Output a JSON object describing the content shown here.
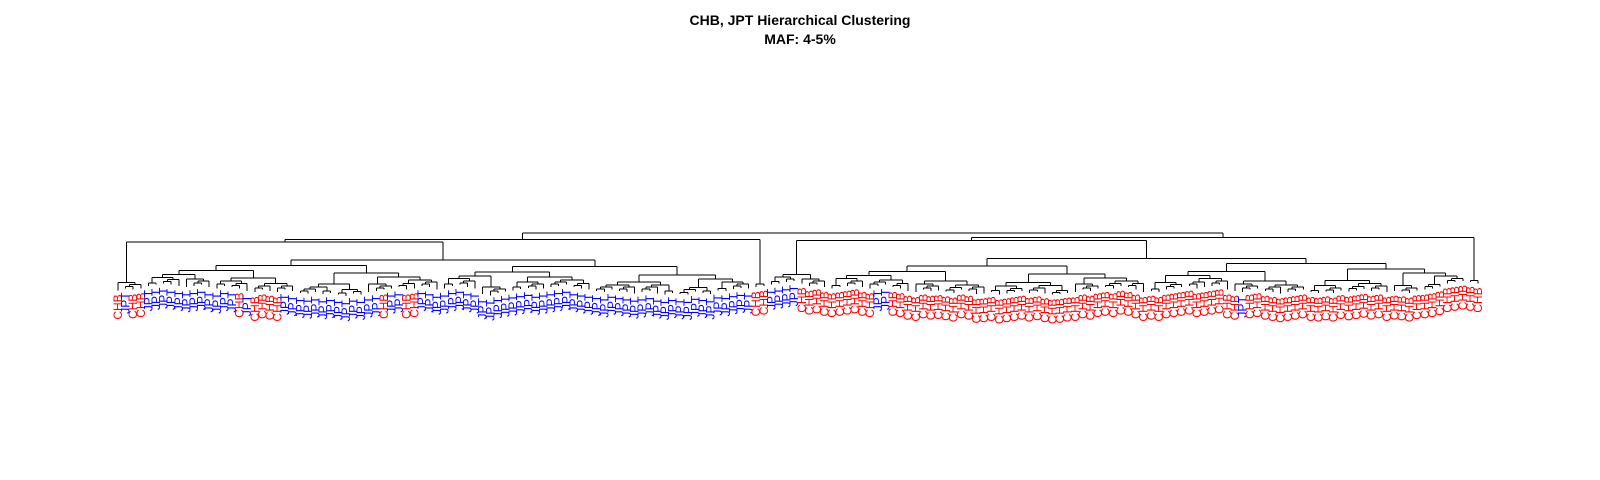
{
  "title": "CHB, JPT Hierarchical Clustering",
  "subtitle": "MAF: 4-5%",
  "colors": {
    "CHB": "#ff0000",
    "JPT": "#0000ff",
    "branch": "#000000"
  },
  "chart_data": {
    "type": "dendrogram",
    "title": "CHB, JPT Hierarchical Clustering",
    "subtitle": "MAF: 4-5%",
    "groups": [
      "CHB",
      "JPT"
    ],
    "leaf_count": 180,
    "leaf_labels": [
      "CHB",
      "JPT",
      "CHB",
      "CHB",
      "JPT",
      "JPT",
      "JPT",
      "JPT",
      "JPT",
      "JPT",
      "JPT",
      "JPT",
      "JPT",
      "JPT",
      "JPT",
      "JPT",
      "CHB",
      "JPT",
      "CHB",
      "CHB",
      "CHB",
      "CHB",
      "JPT",
      "JPT",
      "JPT",
      "JPT",
      "JPT",
      "JPT",
      "JPT",
      "JPT",
      "JPT",
      "JPT",
      "JPT",
      "JPT",
      "JPT",
      "CHB",
      "JPT",
      "JPT",
      "CHB",
      "CHB",
      "JPT",
      "JPT",
      "JPT",
      "JPT",
      "JPT",
      "JPT",
      "JPT",
      "JPT",
      "JPT",
      "JPT",
      "JPT",
      "JPT",
      "JPT",
      "JPT",
      "JPT",
      "JPT",
      "JPT",
      "JPT",
      "JPT",
      "JPT",
      "JPT",
      "JPT",
      "JPT",
      "JPT",
      "JPT",
      "JPT",
      "JPT",
      "JPT",
      "JPT",
      "JPT",
      "JPT",
      "JPT",
      "JPT",
      "JPT",
      "JPT",
      "JPT",
      "JPT",
      "JPT",
      "JPT",
      "JPT",
      "JPT",
      "JPT",
      "JPT",
      "JPT",
      "CHB",
      "CHB",
      "JPT",
      "JPT",
      "JPT",
      "JPT",
      "CHB",
      "CHB",
      "CHB",
      "CHB",
      "CHB",
      "CHB",
      "CHB",
      "CHB",
      "CHB",
      "CHB",
      "JPT",
      "JPT",
      "CHB",
      "CHB",
      "CHB",
      "CHB",
      "CHB",
      "CHB",
      "CHB",
      "CHB",
      "CHB",
      "CHB",
      "CHB",
      "CHB",
      "CHB",
      "CHB",
      "CHB",
      "CHB",
      "CHB",
      "CHB",
      "CHB",
      "CHB",
      "CHB",
      "CHB",
      "CHB",
      "CHB",
      "CHB",
      "CHB",
      "CHB",
      "CHB",
      "CHB",
      "CHB",
      "CHB",
      "CHB",
      "CHB",
      "CHB",
      "CHB",
      "CHB",
      "CHB",
      "CHB",
      "CHB",
      "CHB",
      "CHB",
      "CHB",
      "CHB",
      "CHB",
      "CHB",
      "CHB",
      "JPT",
      "CHB",
      "CHB",
      "CHB",
      "CHB",
      "CHB",
      "CHB",
      "CHB",
      "CHB",
      "CHB",
      "CHB",
      "CHB",
      "CHB",
      "CHB",
      "CHB",
      "CHB",
      "CHB",
      "CHB",
      "CHB",
      "CHB",
      "CHB",
      "CHB",
      "CHB",
      "CHB",
      "CHB",
      "CHB",
      "CHB",
      "CHB",
      "CHB",
      "CHB",
      "CHB",
      "CHB"
    ],
    "leaf_heights": [
      0.09,
      0.12,
      0.1,
      0.12,
      0.16,
      0.18,
      0.2,
      0.18,
      0.16,
      0.14,
      0.16,
      0.18,
      0.14,
      0.12,
      0.16,
      0.14,
      0.12,
      0.08,
      0.06,
      0.1,
      0.08,
      0.06,
      0.1,
      0.08,
      0.05,
      0.04,
      0.06,
      0.03,
      0.05,
      0.02,
      0.0,
      0.04,
      0.02,
      0.06,
      0.08,
      0.1,
      0.12,
      0.14,
      0.1,
      0.12,
      0.16,
      0.14,
      0.1,
      0.12,
      0.16,
      0.18,
      0.14,
      0.12,
      0.03,
      0.01,
      0.05,
      0.07,
      0.09,
      0.11,
      0.13,
      0.1,
      0.12,
      0.14,
      0.16,
      0.18,
      0.14,
      0.12,
      0.1,
      0.08,
      0.06,
      0.1,
      0.08,
      0.06,
      0.04,
      0.06,
      0.08,
      0.04,
      0.02,
      0.05,
      0.03,
      0.02,
      0.07,
      0.05,
      0.03,
      0.09,
      0.08,
      0.11,
      0.13,
      0.12,
      0.14,
      0.16,
      0.18,
      0.2,
      0.22,
      0.24,
      0.2,
      0.16,
      0.18,
      0.14,
      0.12,
      0.14,
      0.16,
      0.18,
      0.14,
      0.12,
      0.16,
      0.18,
      0.14,
      0.12,
      0.08,
      0.06,
      0.1,
      0.08,
      0.09,
      0.07,
      0.05,
      0.1,
      0.08,
      0.03,
      0.04,
      0.06,
      0.02,
      0.04,
      0.06,
      0.08,
      0.05,
      0.07,
      0.04,
      0.02,
      0.03,
      0.05,
      0.06,
      0.1,
      0.08,
      0.12,
      0.14,
      0.12,
      0.16,
      0.14,
      0.1,
      0.06,
      0.08,
      0.06,
      0.1,
      0.12,
      0.14,
      0.16,
      0.12,
      0.14,
      0.16,
      0.18,
      0.1,
      0.08,
      0.06,
      0.1,
      0.12,
      0.08,
      0.06,
      0.04,
      0.06,
      0.08,
      0.1,
      0.06,
      0.05,
      0.07,
      0.05,
      0.09,
      0.07,
      0.09,
      0.11,
      0.08,
      0.1,
      0.06,
      0.08,
      0.07,
      0.05,
      0.09,
      0.1,
      0.12,
      0.15,
      0.2,
      0.22,
      0.24,
      0.22,
      0.2
    ],
    "grid": false,
    "legend": "none"
  }
}
